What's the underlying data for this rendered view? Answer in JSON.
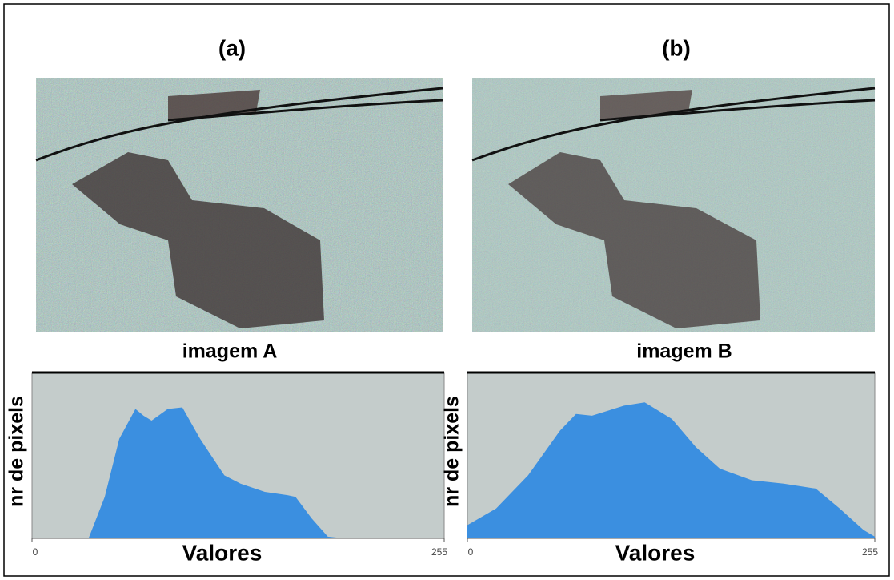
{
  "panels": [
    {
      "label": "(a)",
      "caption": "imagem A"
    },
    {
      "label": "(b)",
      "caption": "imagem B"
    }
  ],
  "chart_data": [
    {
      "type": "area",
      "xlabel": "Valores",
      "ylabel": "nr de pixels",
      "color": "#3b8fe0",
      "x": [
        35,
        45,
        54,
        64,
        69,
        74,
        84,
        93,
        104,
        119,
        129,
        144,
        158,
        163,
        173,
        183,
        193
      ],
      "values": [
        0,
        25,
        60,
        78,
        74,
        71,
        78,
        79,
        60,
        38,
        33,
        28,
        26,
        25,
        12,
        1,
        0
      ],
      "xlim": [
        0,
        255
      ],
      "xticks": [
        0,
        255
      ],
      "ylim": [
        0,
        100
      ]
    },
    {
      "type": "area",
      "xlabel": "Valores",
      "ylabel": "nr de pixels",
      "color": "#3b8fe0",
      "x": [
        0,
        18,
        38,
        58,
        68,
        78,
        98,
        111,
        128,
        143,
        158,
        178,
        198,
        218,
        233,
        248,
        255
      ],
      "values": [
        8,
        18,
        38,
        65,
        75,
        74,
        80,
        82,
        72,
        55,
        42,
        35,
        33,
        30,
        18,
        5,
        1
      ],
      "xlim": [
        0,
        255
      ],
      "xticks": [
        0,
        255
      ],
      "ylim": [
        0,
        100
      ]
    }
  ]
}
